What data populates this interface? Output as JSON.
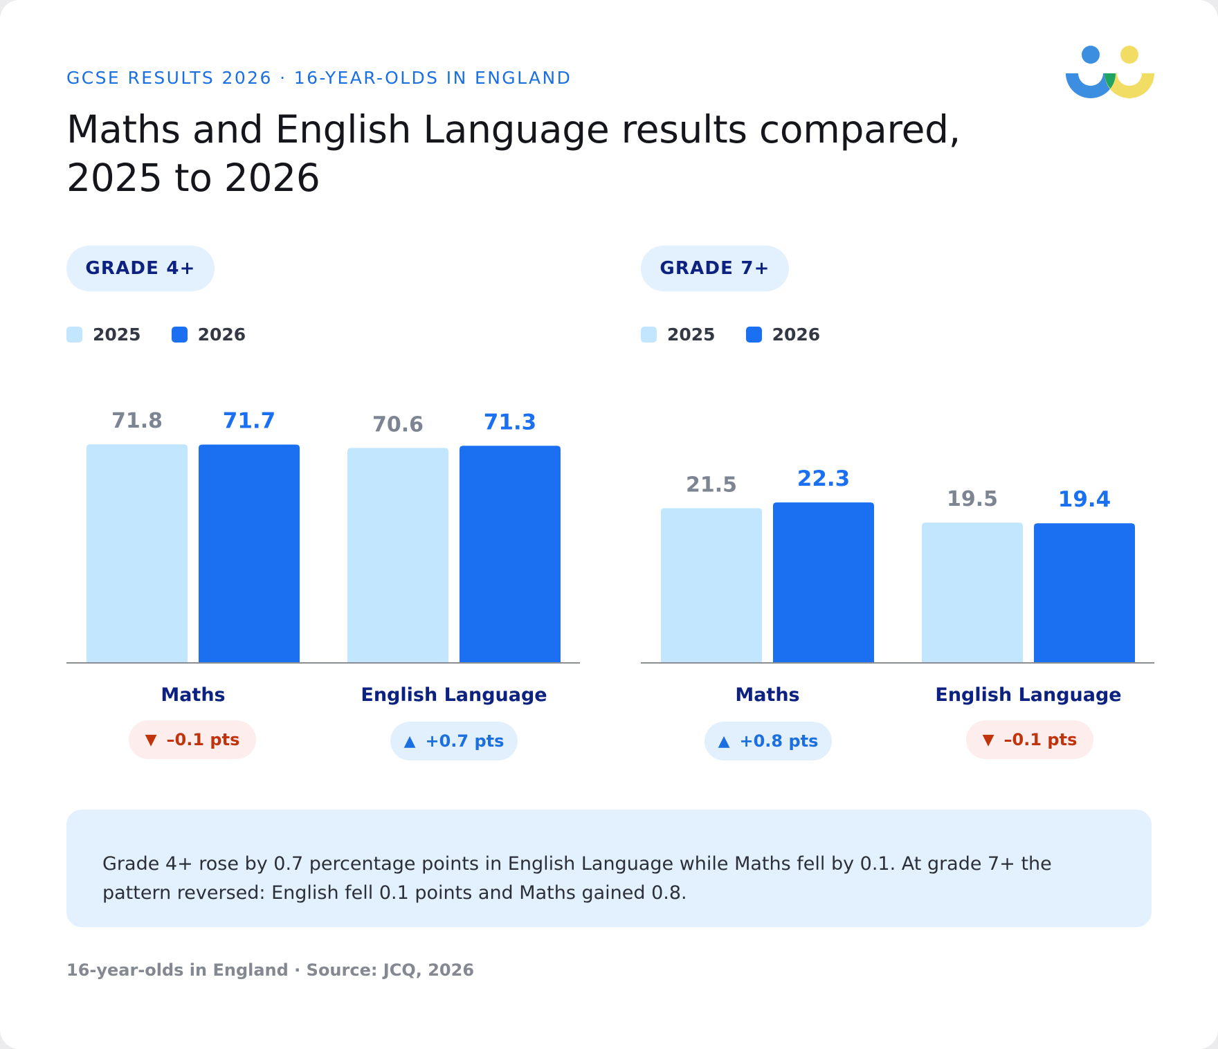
{
  "header": {
    "eyebrow": "GCSE RESULTS 2026 · 16-YEAR-OLDS IN ENGLAND",
    "title": "Maths and English Language results compared, 2025 to 2026"
  },
  "colors": {
    "series_2025": "#c2e6fd",
    "series_2026": "#1b70f2",
    "label_2025": "#7d8593",
    "label_2026": "#1b70f2",
    "category_label": "#0d2280",
    "down": "#c1330c",
    "up": "#1b6fe0",
    "logo_blue": "#3b8ee0",
    "logo_green": "#1fa463",
    "logo_yellow": "#f1dd63"
  },
  "panels": [
    {
      "pill": "GRADE 4+",
      "legend": [
        "2025",
        "2026"
      ],
      "badges": [
        {
          "direction": "down",
          "arrow": "▼",
          "text": "–0.1 pts"
        },
        {
          "direction": "up",
          "arrow": "▲",
          "text": "+0.7 pts"
        }
      ]
    },
    {
      "pill": "GRADE 7+",
      "legend": [
        "2025",
        "2026"
      ],
      "badges": [
        {
          "direction": "up",
          "arrow": "▲",
          "text": "+0.8 pts"
        },
        {
          "direction": "down",
          "arrow": "▼",
          "text": "–0.1 pts"
        }
      ]
    }
  ],
  "chart_data": [
    {
      "type": "bar",
      "title": "GRADE 4+",
      "categories": [
        "Maths",
        "English Language"
      ],
      "series": [
        {
          "name": "2025",
          "values": [
            71.8,
            70.6
          ]
        },
        {
          "name": "2026",
          "values": [
            71.7,
            71.3
          ]
        }
      ],
      "value_labels": [
        [
          "71.8",
          "70.6"
        ],
        [
          "71.7",
          "71.3"
        ]
      ],
      "ylim": [
        0,
        100
      ],
      "grid": false,
      "legend": "top-left"
    },
    {
      "type": "bar",
      "title": "GRADE 7+",
      "categories": [
        "Maths",
        "English Language"
      ],
      "series": [
        {
          "name": "2025",
          "values": [
            21.5,
            19.5
          ]
        },
        {
          "name": "2026",
          "values": [
            22.3,
            19.4
          ]
        }
      ],
      "value_labels": [
        [
          "21.5",
          "19.5"
        ],
        [
          "22.3",
          "19.4"
        ]
      ],
      "ylim": [
        0,
        30
      ],
      "grid": false,
      "legend": "top-left"
    }
  ],
  "note": "Grade 4+ rose by 0.7 percentage points in English Language while Maths fell by 0.1. At grade 7+ the pattern reversed: English fell 0.1 points and Maths gained 0.8.",
  "source": "16-year-olds in England · Source: JCQ, 2026",
  "logo": {
    "icon": "people-logo"
  }
}
